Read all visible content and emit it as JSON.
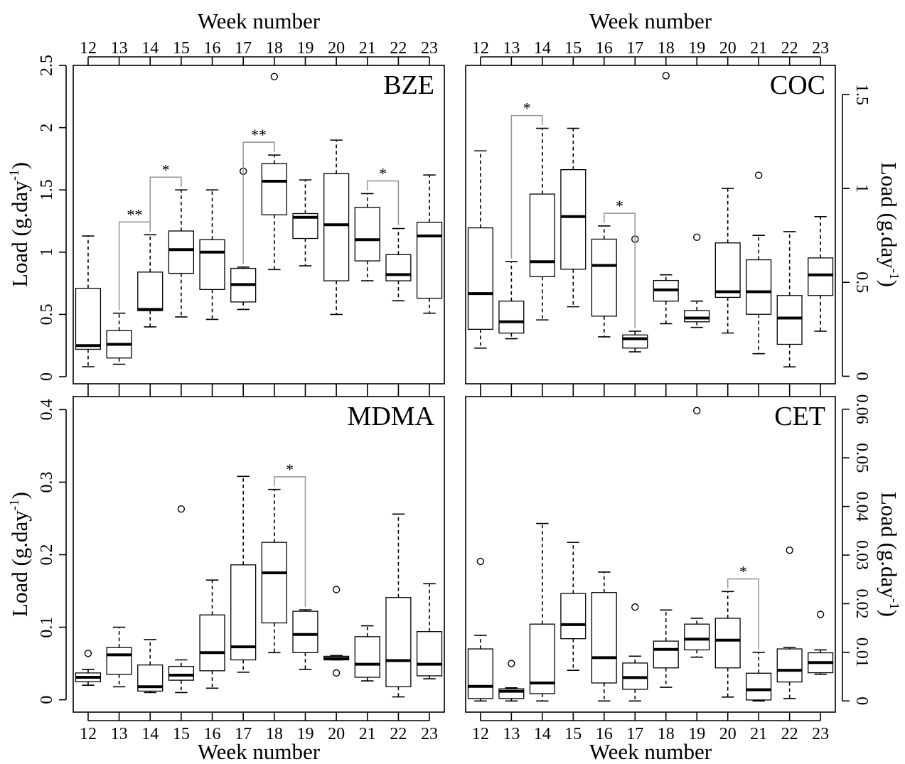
{
  "chart_data": [
    {
      "type": "box",
      "title": "BZE",
      "xlabel": "Week number",
      "ylabel": [
        "Load (g.day",
        "-1",
        ")"
      ],
      "categories": [
        "12",
        "13",
        "14",
        "15",
        "16",
        "17",
        "18",
        "19",
        "20",
        "21",
        "22",
        "23"
      ],
      "ylim": [
        -0.057,
        2.5
      ],
      "yticks": [
        0,
        0.5,
        1,
        1.5,
        2,
        2.5
      ],
      "boxes": [
        {
          "min": 0.08,
          "q1": 0.22,
          "median": 0.25,
          "q3": 0.71,
          "max": 1.13
        },
        {
          "min": 0.1,
          "q1": 0.15,
          "median": 0.26,
          "q3": 0.37,
          "max": 0.51
        },
        {
          "min": 0.4,
          "q1": 0.53,
          "median": 0.54,
          "q3": 0.84,
          "max": 1.14
        },
        {
          "min": 0.48,
          "q1": 0.83,
          "median": 1.02,
          "q3": 1.17,
          "max": 1.5
        },
        {
          "min": 0.46,
          "q1": 0.7,
          "median": 1.0,
          "q3": 1.1,
          "max": 1.5
        },
        {
          "min": 0.54,
          "q1": 0.6,
          "median": 0.74,
          "q3": 0.87,
          "max": 0.88,
          "outliers": [
            1.65
          ]
        },
        {
          "min": 0.86,
          "q1": 1.3,
          "median": 1.57,
          "q3": 1.71,
          "max": 1.78,
          "outliers": [
            2.41
          ]
        },
        {
          "min": 0.89,
          "q1": 1.11,
          "median": 1.28,
          "q3": 1.31,
          "max": 1.58
        },
        {
          "min": 0.5,
          "q1": 0.77,
          "median": 1.22,
          "q3": 1.63,
          "max": 1.9
        },
        {
          "min": 0.77,
          "q1": 0.93,
          "median": 1.1,
          "q3": 1.36,
          "max": 1.47
        },
        {
          "min": 0.61,
          "q1": 0.77,
          "median": 0.82,
          "q3": 0.98,
          "max": 1.19
        },
        {
          "min": 0.51,
          "q1": 0.63,
          "median": 1.13,
          "q3": 1.24,
          "max": 1.62
        }
      ],
      "brackets": [
        {
          "from": "13",
          "to": "14",
          "label": "**"
        },
        {
          "from": "14",
          "to": "15",
          "label": "*"
        },
        {
          "from": "17",
          "to": "18",
          "label": "**"
        },
        {
          "from": "21",
          "to": "22",
          "label": "*"
        }
      ]
    },
    {
      "type": "box",
      "title": "COC",
      "xlabel": "Week number",
      "ylabel": [
        "Load (g.day",
        "-1",
        ")"
      ],
      "categories": [
        "12",
        "13",
        "14",
        "15",
        "16",
        "17",
        "18",
        "19",
        "20",
        "21",
        "22",
        "23"
      ],
      "ylim": [
        -0.04,
        1.655
      ],
      "yticks": [
        0,
        0.5,
        1,
        1.5
      ],
      "boxes": [
        {
          "min": 0.15,
          "q1": 0.25,
          "median": 0.44,
          "q3": 0.79,
          "max": 1.2
        },
        {
          "min": 0.2,
          "q1": 0.23,
          "median": 0.29,
          "q3": 0.4,
          "max": 0.61
        },
        {
          "min": 0.3,
          "q1": 0.53,
          "median": 0.61,
          "q3": 0.97,
          "max": 1.32
        },
        {
          "min": 0.37,
          "q1": 0.57,
          "median": 0.85,
          "q3": 1.1,
          "max": 1.32
        },
        {
          "min": 0.21,
          "q1": 0.32,
          "median": 0.59,
          "q3": 0.73,
          "max": 0.8
        },
        {
          "min": 0.13,
          "q1": 0.15,
          "median": 0.2,
          "q3": 0.22,
          "max": 0.24,
          "outliers": [
            0.73
          ]
        },
        {
          "min": 0.28,
          "q1": 0.4,
          "median": 0.46,
          "q3": 0.51,
          "max": 0.54,
          "outliers": [
            1.6
          ]
        },
        {
          "min": 0.26,
          "q1": 0.29,
          "median": 0.31,
          "q3": 0.35,
          "max": 0.4,
          "outliers": [
            0.74
          ]
        },
        {
          "min": 0.23,
          "q1": 0.42,
          "median": 0.45,
          "q3": 0.71,
          "max": 1.0
        },
        {
          "min": 0.12,
          "q1": 0.33,
          "median": 0.45,
          "q3": 0.62,
          "max": 0.75,
          "outliers": [
            1.07
          ]
        },
        {
          "min": 0.05,
          "q1": 0.17,
          "median": 0.31,
          "q3": 0.43,
          "max": 0.77
        },
        {
          "min": 0.24,
          "q1": 0.43,
          "median": 0.54,
          "q3": 0.63,
          "max": 0.85
        }
      ],
      "brackets": [
        {
          "from": "13",
          "to": "14",
          "label": "*"
        },
        {
          "from": "16",
          "to": "17",
          "label": "*"
        }
      ]
    },
    {
      "type": "box",
      "title": "MDMA",
      "xlabel": "Week number",
      "ylabel": [
        "Load (g.day",
        "-1",
        ")"
      ],
      "categories": [
        "12",
        "13",
        "14",
        "15",
        "16",
        "17",
        "18",
        "19",
        "20",
        "21",
        "22",
        "23"
      ],
      "ylim": [
        -0.017,
        0.418
      ],
      "yticks": [
        0,
        0.1,
        0.2,
        0.3,
        0.4
      ],
      "boxes": [
        {
          "min": 0.02,
          "q1": 0.025,
          "median": 0.031,
          "q3": 0.037,
          "max": 0.042,
          "outliers": [
            0.064
          ]
        },
        {
          "min": 0.018,
          "q1": 0.035,
          "median": 0.062,
          "q3": 0.072,
          "max": 0.1
        },
        {
          "min": 0.01,
          "q1": 0.012,
          "median": 0.018,
          "q3": 0.048,
          "max": 0.083
        },
        {
          "min": 0.01,
          "q1": 0.027,
          "median": 0.034,
          "q3": 0.046,
          "max": 0.055,
          "outliers": [
            0.263
          ]
        },
        {
          "min": 0.016,
          "q1": 0.04,
          "median": 0.065,
          "q3": 0.117,
          "max": 0.165
        },
        {
          "min": 0.038,
          "q1": 0.055,
          "median": 0.073,
          "q3": 0.186,
          "max": 0.308
        },
        {
          "min": 0.065,
          "q1": 0.106,
          "median": 0.175,
          "q3": 0.217,
          "max": 0.29
        },
        {
          "min": 0.042,
          "q1": 0.065,
          "median": 0.09,
          "q3": 0.122,
          "max": 0.124
        },
        {
          "min": 0.055,
          "q1": 0.055,
          "median": 0.057,
          "q3": 0.06,
          "max": 0.061,
          "outliers": [
            0.152,
            0.037
          ]
        },
        {
          "min": 0.026,
          "q1": 0.031,
          "median": 0.049,
          "q3": 0.087,
          "max": 0.102
        },
        {
          "min": 0.004,
          "q1": 0.018,
          "median": 0.054,
          "q3": 0.141,
          "max": 0.256
        },
        {
          "min": 0.029,
          "q1": 0.033,
          "median": 0.049,
          "q3": 0.094,
          "max": 0.16
        }
      ],
      "brackets": [
        {
          "from": "18",
          "to": "19",
          "label": "*"
        }
      ]
    },
    {
      "type": "box",
      "title": "CET",
      "xlabel": "Week number",
      "ylabel": [
        "Load (g.day",
        "-1",
        ")"
      ],
      "categories": [
        "12",
        "13",
        "14",
        "15",
        "16",
        "17",
        "18",
        "19",
        "20",
        "21",
        "22",
        "23"
      ],
      "ylim": [
        -0.0023,
        0.0626
      ],
      "yticks": [
        0,
        0.01,
        0.02,
        0.03,
        0.04,
        0.05,
        0.06
      ],
      "boxes": [
        {
          "min": 0,
          "q1": 0.0005,
          "median": 0.003,
          "q3": 0.0107,
          "max": 0.0135,
          "outliers": [
            0.0287
          ]
        },
        {
          "min": 0,
          "q1": 0.0005,
          "median": 0.002,
          "q3": 0.0025,
          "max": 0.0027,
          "outliers": [
            0.0077
          ]
        },
        {
          "min": 0,
          "q1": 0.0015,
          "median": 0.0037,
          "q3": 0.0158,
          "max": 0.0365
        },
        {
          "min": 0.0063,
          "q1": 0.0128,
          "median": 0.0157,
          "q3": 0.0221,
          "max": 0.0326
        },
        {
          "min": 0,
          "q1": 0.0037,
          "median": 0.0089,
          "q3": 0.0223,
          "max": 0.0265
        },
        {
          "min": 0,
          "q1": 0.0024,
          "median": 0.0048,
          "q3": 0.0078,
          "max": 0.0092,
          "outliers": [
            0.0193
          ]
        },
        {
          "min": 0.0028,
          "q1": 0.0068,
          "median": 0.0106,
          "q3": 0.0123,
          "max": 0.0187
        },
        {
          "min": 0.009,
          "q1": 0.0105,
          "median": 0.0127,
          "q3": 0.0158,
          "max": 0.017,
          "outliers": [
            0.0597
          ]
        },
        {
          "min": 0.0008,
          "q1": 0.0068,
          "median": 0.0125,
          "q3": 0.017,
          "max": 0.0225
        },
        {
          "min": 0,
          "q1": 0.0002,
          "median": 0.0023,
          "q3": 0.0057,
          "max": 0.01
        },
        {
          "min": 0.0005,
          "q1": 0.0039,
          "median": 0.0063,
          "q3": 0.0107,
          "max": 0.011,
          "outliers": [
            0.031
          ]
        },
        {
          "min": 0.0055,
          "q1": 0.0058,
          "median": 0.0079,
          "q3": 0.0099,
          "max": 0.0105,
          "outliers": [
            0.0178
          ]
        }
      ],
      "brackets": [
        {
          "from": "20",
          "to": "21",
          "label": "*"
        }
      ]
    }
  ]
}
